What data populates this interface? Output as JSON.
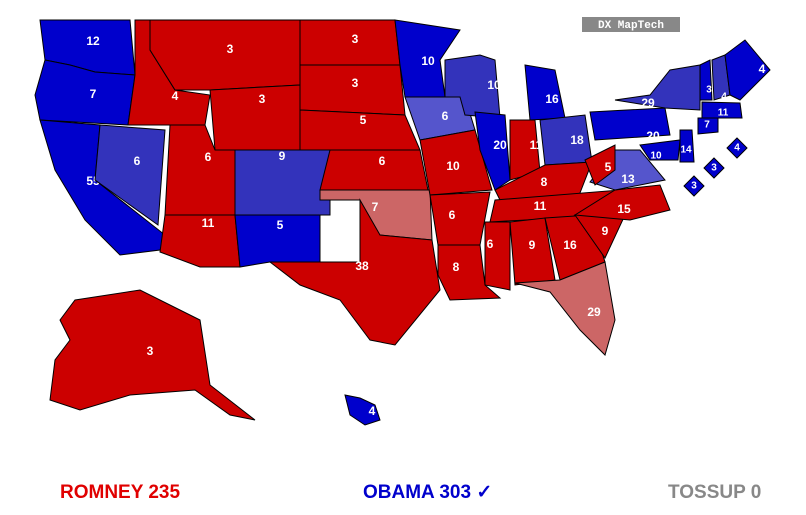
{
  "badge": "DX MapTech",
  "states": [
    {
      "votes": 12,
      "color": "#0000cc"
    },
    {
      "votes": 7,
      "color": "#0000cc"
    },
    {
      "votes": 55,
      "color": "#0000cc"
    },
    {
      "votes": 6,
      "color": "#3333bb"
    },
    {
      "votes": 4,
      "color": "#cc0000"
    },
    {
      "votes": 3,
      "color": "#cc0000"
    },
    {
      "votes": 3,
      "color": "#cc0000"
    },
    {
      "votes": 6,
      "color": "#cc0000"
    },
    {
      "votes": 11,
      "color": "#cc0000"
    },
    {
      "votes": 9,
      "color": "#3333bb"
    },
    {
      "votes": 5,
      "color": "#0000cc"
    },
    {
      "votes": 3,
      "color": "#cc0000"
    },
    {
      "votes": 3,
      "color": "#cc0000"
    },
    {
      "votes": 5,
      "color": "#cc0000"
    },
    {
      "votes": 6,
      "color": "#cc0000"
    },
    {
      "votes": 7,
      "color": "#cc6666"
    },
    {
      "votes": 38,
      "color": "#cc0000"
    },
    {
      "votes": 10,
      "color": "#0000cc"
    },
    {
      "votes": 6,
      "color": "#5555cc"
    },
    {
      "votes": 10,
      "color": "#cc0000"
    },
    {
      "votes": 6,
      "color": "#cc0000"
    },
    {
      "votes": 8,
      "color": "#cc0000"
    },
    {
      "votes": 10,
      "color": "#3333bb"
    },
    {
      "votes": 20,
      "color": "#0000cc"
    },
    {
      "votes": 16,
      "color": "#0000cc"
    },
    {
      "votes": 11,
      "color": "#cc0000"
    },
    {
      "votes": 18,
      "color": "#3333bb"
    },
    {
      "votes": 8,
      "color": "#cc0000"
    },
    {
      "votes": 11,
      "color": "#cc0000"
    },
    {
      "votes": 6,
      "color": "#cc0000"
    },
    {
      "votes": 9,
      "color": "#cc0000"
    },
    {
      "votes": 16,
      "color": "#cc0000"
    },
    {
      "votes": 29,
      "color": "#cc6666"
    },
    {
      "votes": 9,
      "color": "#cc0000"
    },
    {
      "votes": 15,
      "color": "#cc0000"
    },
    {
      "votes": 13,
      "color": "#5555cc"
    },
    {
      "votes": 5,
      "color": "#cc0000"
    },
    {
      "votes": 20,
      "color": "#0000cc"
    },
    {
      "votes": 29,
      "color": "#3333bb"
    },
    {
      "votes": 3,
      "color": "#0000cc"
    },
    {
      "votes": 4,
      "color": "#3333bb"
    },
    {
      "votes": 4,
      "color": "#0000cc"
    },
    {
      "votes": 11,
      "color": "#0000cc"
    },
    {
      "votes": 7,
      "color": "#0000cc"
    },
    {
      "votes": 14,
      "color": "#0000cc"
    },
    {
      "votes": 10,
      "color": "#0000cc"
    },
    {
      "votes": 4,
      "color": "#0000cc"
    },
    {
      "votes": 3,
      "color": "#0000cc"
    },
    {
      "votes": 3,
      "color": "#0000cc"
    },
    {
      "votes": 3,
      "color": "#cc0000"
    },
    {
      "votes": 4,
      "color": "#0000cc"
    }
  ],
  "legend": [
    {
      "label": "ROMNEY 235",
      "color": "#e00000"
    },
    {
      "label": "OBAMA 303 ✓",
      "color": "#0000cc"
    },
    {
      "label": "TOSSUP 0",
      "color": "#888888"
    }
  ]
}
